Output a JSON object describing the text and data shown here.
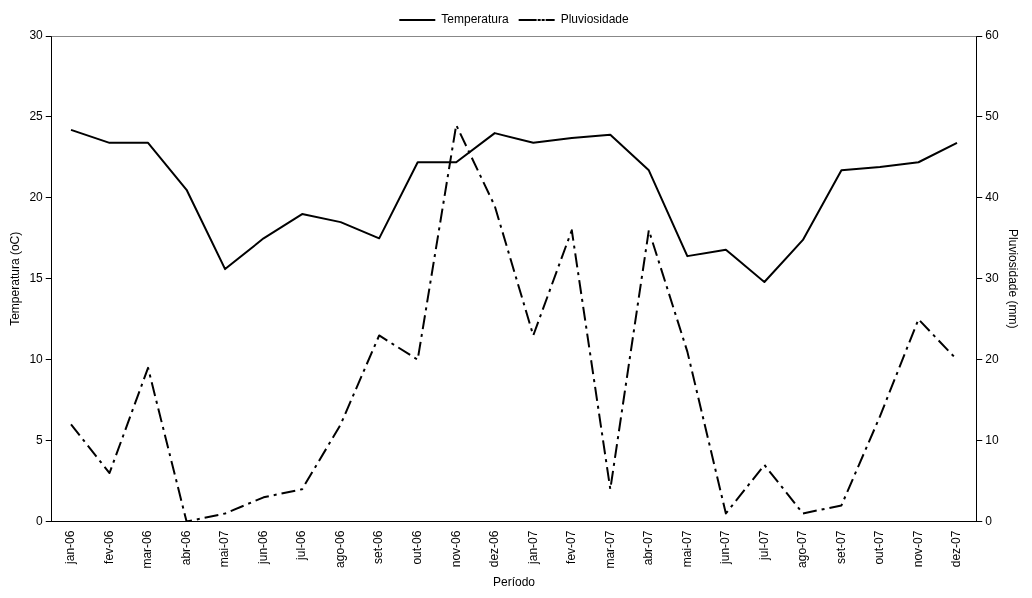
{
  "chart_data": {
    "type": "line",
    "xlabel": "Período",
    "ylabel": "Temperatura (oC)",
    "y2label": "Pluviosidade (mm)",
    "categories": [
      "jan-06",
      "fev-06",
      "mar-06",
      "abr-06",
      "mai-07",
      "jun-06",
      "jul-06",
      "ago-06",
      "set-06",
      "out-06",
      "nov-06",
      "dez-06",
      "jan-07",
      "fev-07",
      "mar-07",
      "abr-07",
      "mai-07",
      "jun-07",
      "jul-07",
      "ago-07",
      "set-07",
      "out-07",
      "nov-07",
      "dez-07"
    ],
    "series": [
      {
        "name": "Temperatura",
        "color": "#000000",
        "line_style": "solid",
        "values": [
          24.2,
          23.4,
          23.4,
          20.5,
          15.6,
          17.5,
          19,
          18.5,
          17.5,
          22.2,
          22.2,
          24,
          23.4,
          23.7,
          23.9,
          21.7,
          16.4,
          16.8,
          14.8,
          17.4,
          21.7,
          21.9,
          22.2,
          23.4
        ]
      },
      {
        "name": "Pluviosidade",
        "color": "#000000",
        "line_style": "dashed",
        "axis": "y2",
        "values": [
          12,
          6,
          19,
          0,
          1,
          3,
          4,
          12,
          23,
          20,
          49,
          39,
          23,
          36,
          4,
          36,
          21,
          1,
          7,
          1,
          2,
          13,
          25,
          20
        ]
      }
    ],
    "ylim": [
      0,
      30
    ],
    "yticks": [
      0,
      5,
      10,
      15,
      20,
      25,
      30
    ],
    "y2lim": [
      0,
      60
    ],
    "y2ticks": [
      0,
      10,
      20,
      30,
      40,
      50,
      60
    ],
    "grid": false,
    "legend": "top",
    "marker": "none"
  }
}
